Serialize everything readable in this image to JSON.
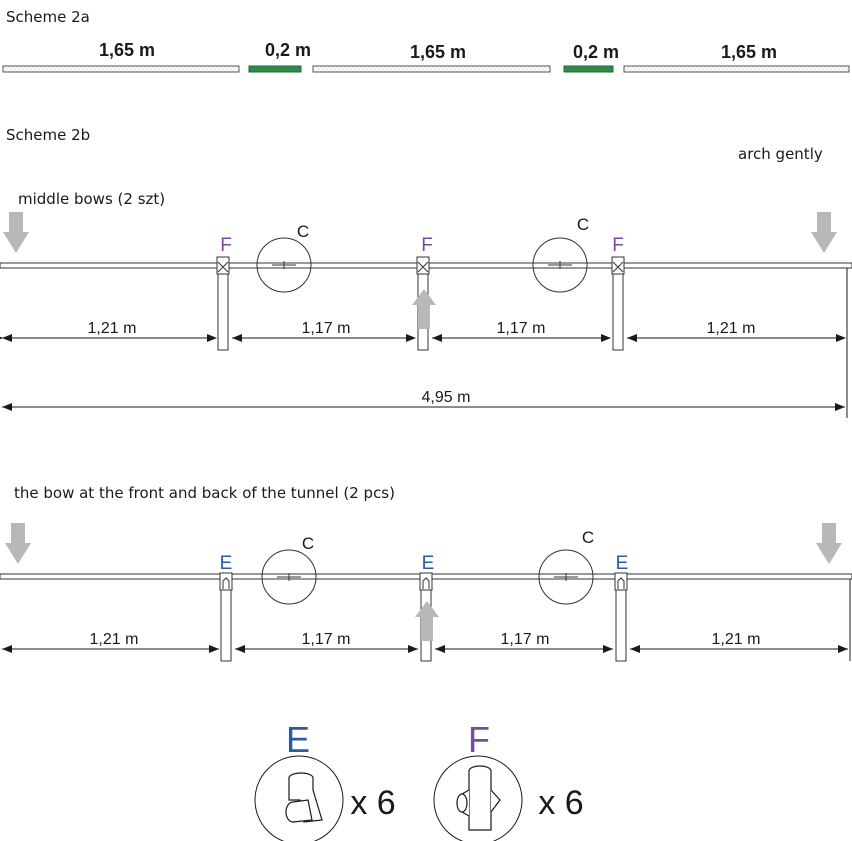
{
  "scheme_2a": {
    "title": "Scheme 2a",
    "segments": [
      {
        "label": "1,65 m",
        "kind": "pipe"
      },
      {
        "label": "0,2 m",
        "kind": "connector"
      },
      {
        "label": "1,65 m",
        "kind": "pipe"
      },
      {
        "label": "0,2 m",
        "kind": "connector"
      },
      {
        "label": "1,65 m",
        "kind": "pipe"
      }
    ],
    "connector_color": "#2e8b4e"
  },
  "scheme_2b": {
    "title": "Scheme 2b",
    "note": "arch gently",
    "middle": {
      "caption": "middle bows (2 szt)",
      "joint_letter": "F",
      "circle_letter": "C",
      "dims": [
        "1,21 m",
        "1,17 m",
        "1,17 m",
        "1,21 m"
      ],
      "total": "4,95 m"
    },
    "front_back": {
      "caption": "the bow at the front and back of the tunnel (2 pcs)",
      "joint_letter": "E",
      "circle_letter": "C",
      "dims": [
        "1,21 m",
        "1,17 m",
        "1,17 m",
        "1,21 m"
      ]
    }
  },
  "parts": [
    {
      "letter": "E",
      "quantity": "x 6",
      "icon": "tee-connector-icon",
      "color": "#2a5aa6"
    },
    {
      "letter": "F",
      "quantity": "x 6",
      "icon": "cross-connector-icon",
      "color": "#7b4a9c"
    }
  ],
  "arrow_color": "#b8b8b8"
}
